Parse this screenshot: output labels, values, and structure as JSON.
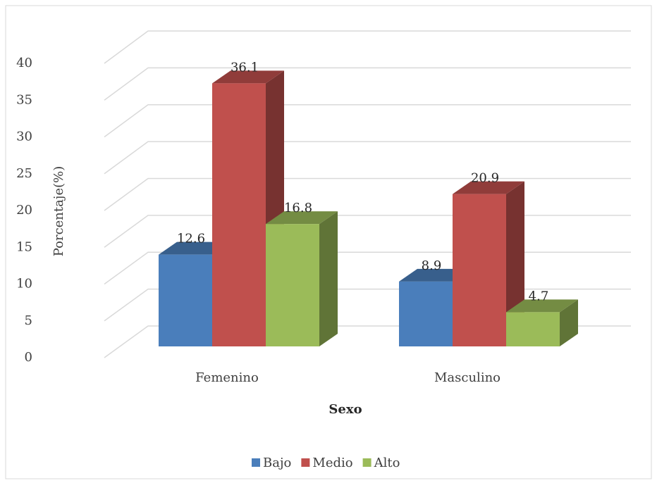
{
  "chart_data": {
    "type": "bar3d",
    "x_label": "Sexo",
    "y_label": "Porcentaje(%)",
    "categories": [
      "Femenino",
      "Masculino"
    ],
    "series": [
      {
        "name": "Bajo",
        "color": "#4a7ebb",
        "values": [
          12.6,
          8.9
        ]
      },
      {
        "name": "Medio",
        "color": "#c0504d",
        "values": [
          36.1,
          20.9
        ]
      },
      {
        "name": "Alto",
        "color": "#9bbb59",
        "values": [
          16.8,
          4.7
        ]
      }
    ],
    "ylim": [
      0,
      40
    ],
    "yticks": [
      0,
      5,
      10,
      15,
      20,
      25,
      30,
      35,
      40
    ],
    "grid": true,
    "legend": "bottom"
  }
}
